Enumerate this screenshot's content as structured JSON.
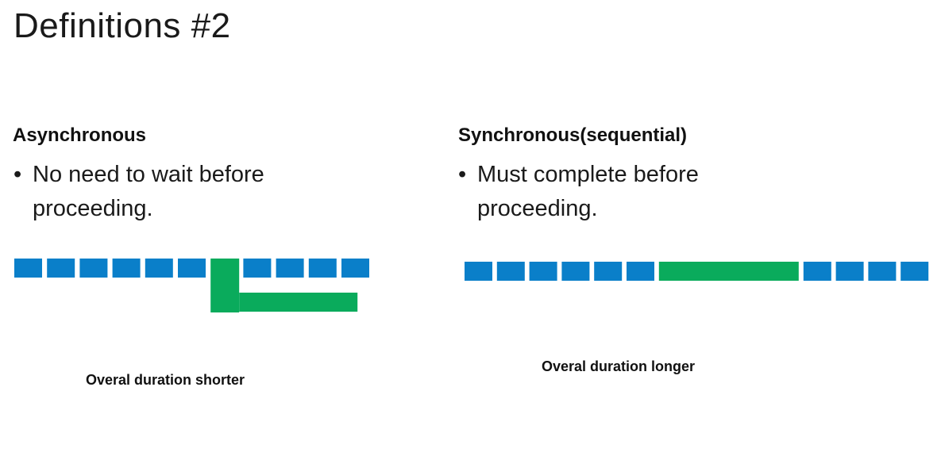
{
  "slide": {
    "title": "Definitions #2"
  },
  "async_column": {
    "heading": "Asynchronous",
    "bullet_symbol": "•",
    "bullet_text": "No need to wait before\nproceeding.",
    "caption": "Overal duration shorter",
    "main_track_blocks": 11,
    "blue_block_positions": [
      1,
      2,
      3,
      4,
      5,
      6,
      8,
      9,
      10,
      11
    ],
    "green_branch_position": 7
  },
  "sync_column": {
    "heading": "Synchronous(sequential)",
    "bullet_symbol": "•",
    "bullet_text": "Must complete before\nproceeding.",
    "caption": "Overal duration longer",
    "blue_blocks_before_wait": 6,
    "blue_blocks_after_wait": 4
  },
  "colors": {
    "task_block": "#0a7fc9",
    "wait_task": "#0aab5c",
    "text": "#111111"
  }
}
